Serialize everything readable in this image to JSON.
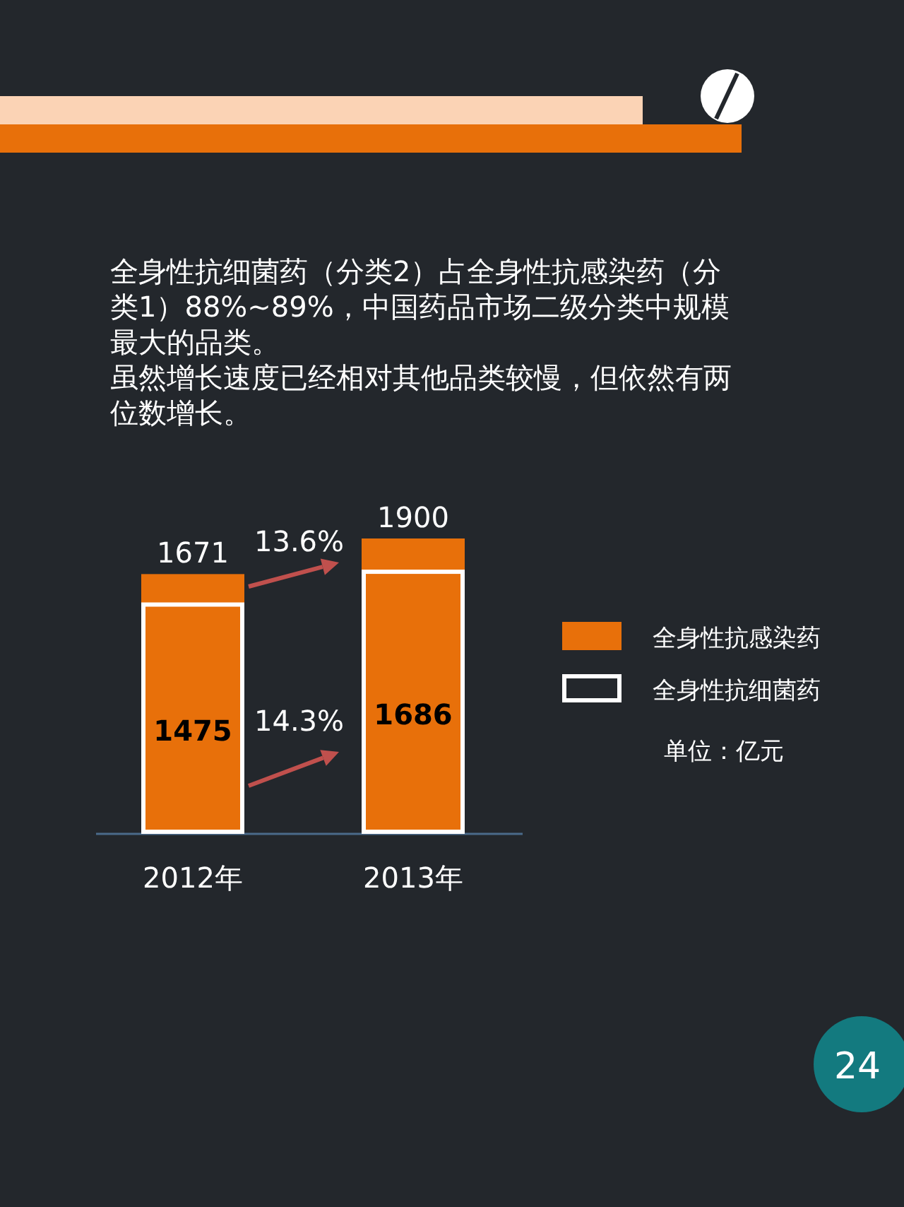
{
  "chart_data": {
    "type": "bar",
    "title": "全身性抗细菌药（分类2）占全身性抗感染药（分类1）88%~89%，中国药品市场二级分类中规模最大的品类。",
    "subtitle": "虽然增长速度已经相对其他品类较慢，但依然有两位数增长。",
    "categories": [
      "2012年",
      "2013年"
    ],
    "series": [
      {
        "name": "全身性抗感染药",
        "color": "#e8700a",
        "values": [
          1671,
          1900
        ]
      },
      {
        "name": "全身性抗细菌药",
        "color": "#ffffff",
        "values": [
          1475,
          1686
        ]
      }
    ],
    "data_labels": true,
    "legend": "right",
    "annotations": [
      "13.6%",
      "14.3%",
      "单位：亿元",
      "24"
    ]
  }
}
